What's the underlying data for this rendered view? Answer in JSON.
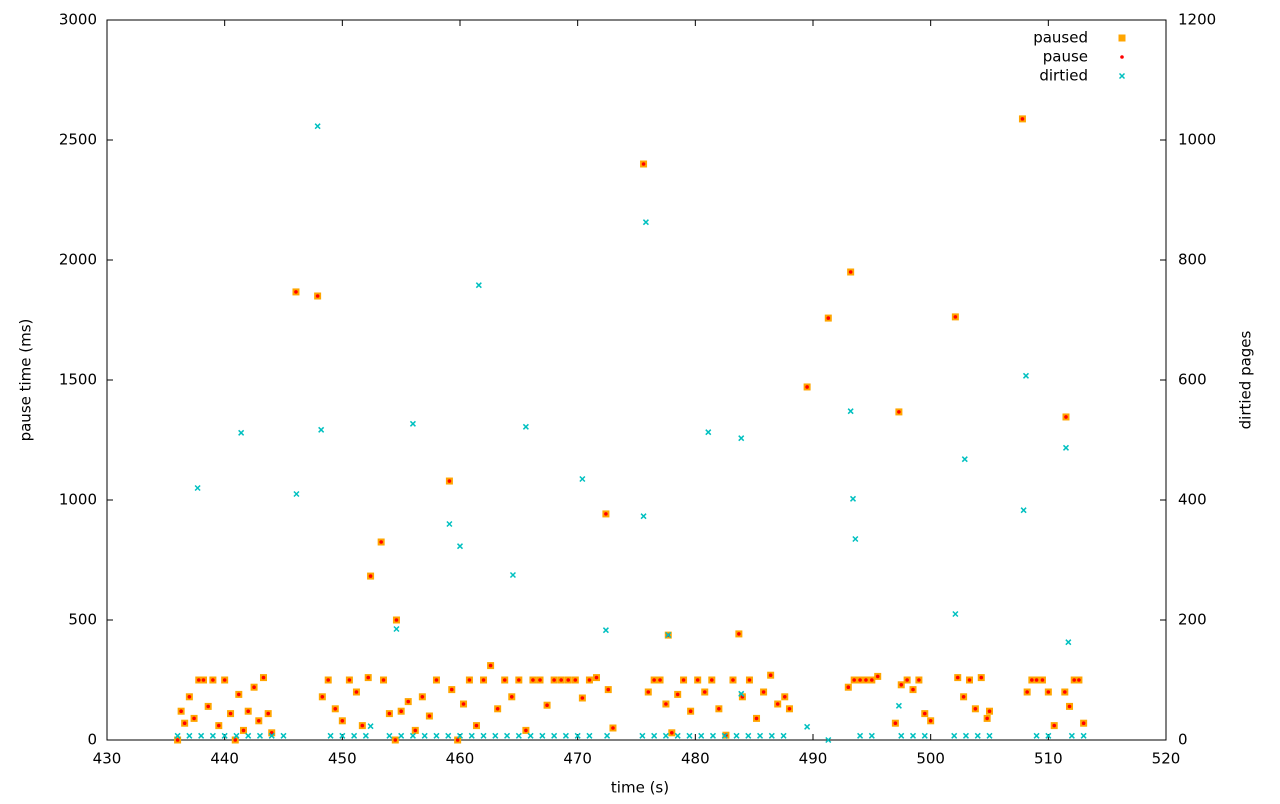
{
  "chart_data": {
    "type": "scatter",
    "xlabel": "time (s)",
    "ylabel": "pause time (ms)",
    "y2label": "dirtied pages",
    "xlim": [
      430,
      520
    ],
    "xticks": [
      430,
      440,
      450,
      460,
      470,
      480,
      490,
      500,
      510,
      520
    ],
    "ylim": [
      0,
      3000
    ],
    "yticks": [
      0,
      500,
      1000,
      1500,
      2000,
      2500,
      3000
    ],
    "y2lim": [
      0,
      1200
    ],
    "y2ticks": [
      0,
      200,
      400,
      600,
      800,
      1000,
      1200
    ],
    "legend": "top-right",
    "series": [
      {
        "name": "paused",
        "color": "#ffa500",
        "marker": "square",
        "x": [
          436.0,
          436.3,
          436.6,
          437.0,
          437.4,
          437.8,
          438.2,
          438.6,
          439.0,
          439.5,
          440.0,
          440.5,
          440.9,
          441.2,
          441.6,
          442.0,
          442.5,
          442.9,
          443.3,
          443.7,
          444.0,
          448.3,
          448.8,
          449.4,
          450.0,
          450.6,
          451.2,
          451.7,
          452.2,
          453.5,
          454.0,
          454.5,
          455.0,
          455.6,
          456.2,
          456.8,
          457.4,
          458.0,
          459.3,
          459.8,
          460.3,
          460.8,
          461.4,
          462.0,
          462.6,
          463.2,
          463.8,
          464.4,
          465.0,
          465.6,
          466.2,
          466.8,
          467.4,
          468.0,
          468.6,
          469.2,
          469.8,
          470.4,
          471.0,
          471.6,
          472.6,
          473.0,
          476.0,
          476.5,
          477.0,
          477.5,
          478.0,
          478.5,
          479.0,
          479.6,
          480.2,
          480.8,
          481.4,
          482.0,
          482.6,
          483.2,
          484.0,
          484.6,
          485.2,
          485.8,
          486.4,
          487.0,
          487.6,
          488.0,
          493.0,
          493.5,
          494.0,
          494.5,
          495.0,
          495.5,
          497.0,
          497.5,
          498.0,
          498.5,
          499.0,
          499.5,
          500.0,
          502.3,
          502.8,
          503.3,
          503.8,
          504.3,
          504.8,
          505.0,
          508.2,
          508.6,
          509.0,
          509.5,
          510.0,
          510.5,
          511.4,
          511.8,
          512.2,
          512.6,
          513.0,
          446.06,
          447.9,
          459.1,
          453.3,
          452.4,
          454.6,
          472.4,
          475.6,
          477.7,
          483.7,
          489.5,
          491.3,
          493.2,
          497.3,
          502.1,
          507.8,
          511.5
        ],
        "values": [
          0,
          120,
          70,
          180,
          90,
          250,
          250,
          140,
          250,
          60,
          250,
          110,
          0,
          190,
          40,
          120,
          220,
          80,
          260,
          110,
          30,
          180,
          250,
          130,
          80,
          250,
          200,
          60,
          260,
          250,
          110,
          0,
          120,
          160,
          40,
          180,
          100,
          250,
          210,
          0,
          150,
          250,
          60,
          250,
          310,
          130,
          250,
          180,
          250,
          40,
          250,
          250,
          145,
          250,
          250,
          250,
          250,
          175,
          250,
          260,
          210,
          50,
          200,
          250,
          250,
          150,
          30,
          190,
          250,
          120,
          250,
          200,
          250,
          130,
          20,
          250,
          180,
          250,
          90,
          200,
          270,
          150,
          180,
          130,
          220,
          250,
          250,
          250,
          250,
          265,
          70,
          230,
          250,
          210,
          250,
          110,
          80,
          260,
          180,
          250,
          130,
          260,
          90,
          120,
          200,
          250,
          250,
          250,
          200,
          60,
          200,
          140,
          250,
          250,
          70,
          1867,
          1850,
          1079,
          825,
          683,
          500,
          942,
          2400,
          437,
          442,
          1471,
          1758,
          1950,
          1367,
          1763,
          2588,
          1346
        ]
      },
      {
        "name": "pause",
        "color": "#ff0000",
        "marker": "dot",
        "x": [
          436.0,
          436.3,
          436.6,
          437.0,
          437.4,
          437.8,
          438.2,
          438.6,
          439.0,
          439.5,
          440.0,
          440.5,
          440.9,
          441.2,
          441.6,
          442.0,
          442.5,
          442.9,
          443.3,
          443.7,
          444.0,
          448.3,
          448.8,
          449.4,
          450.0,
          450.6,
          451.2,
          451.7,
          452.2,
          453.5,
          454.0,
          454.5,
          455.0,
          455.6,
          456.2,
          456.8,
          457.4,
          458.0,
          459.3,
          459.8,
          460.3,
          460.8,
          461.4,
          462.0,
          462.6,
          463.2,
          463.8,
          464.4,
          465.0,
          465.6,
          466.2,
          466.8,
          467.4,
          468.0,
          468.6,
          469.2,
          469.8,
          470.4,
          471.0,
          471.6,
          472.6,
          473.0,
          476.0,
          476.5,
          477.0,
          477.5,
          478.0,
          478.5,
          479.0,
          479.6,
          480.2,
          480.8,
          481.4,
          482.0,
          482.6,
          483.2,
          484.0,
          484.6,
          485.2,
          485.8,
          486.4,
          487.0,
          487.6,
          488.0,
          493.0,
          493.5,
          494.0,
          494.5,
          495.0,
          495.5,
          497.0,
          497.5,
          498.0,
          498.5,
          499.0,
          499.5,
          500.0,
          502.3,
          502.8,
          503.3,
          503.8,
          504.3,
          504.8,
          505.0,
          508.2,
          508.6,
          509.0,
          509.5,
          510.0,
          510.5,
          511.4,
          511.8,
          512.2,
          512.6,
          513.0,
          446.06,
          447.9,
          459.1,
          453.3,
          452.4,
          454.6,
          472.4,
          475.6,
          477.7,
          483.7,
          489.5,
          491.3,
          493.2,
          497.3,
          502.1,
          507.8,
          511.5
        ],
        "values": [
          0,
          120,
          70,
          180,
          90,
          250,
          250,
          140,
          250,
          60,
          250,
          110,
          0,
          190,
          40,
          120,
          220,
          80,
          260,
          110,
          30,
          180,
          250,
          130,
          80,
          250,
          200,
          60,
          260,
          250,
          110,
          0,
          120,
          160,
          40,
          180,
          100,
          250,
          210,
          0,
          150,
          250,
          60,
          250,
          310,
          130,
          250,
          180,
          250,
          40,
          250,
          250,
          145,
          250,
          250,
          250,
          250,
          175,
          250,
          260,
          210,
          50,
          200,
          250,
          250,
          150,
          30,
          190,
          250,
          120,
          250,
          200,
          250,
          130,
          20,
          250,
          180,
          250,
          90,
          200,
          270,
          150,
          180,
          130,
          220,
          250,
          250,
          250,
          250,
          265,
          70,
          230,
          250,
          210,
          250,
          110,
          80,
          260,
          180,
          250,
          130,
          260,
          90,
          120,
          200,
          250,
          250,
          250,
          200,
          60,
          200,
          140,
          250,
          250,
          70,
          1867,
          1850,
          1079,
          825,
          683,
          500,
          942,
          2400,
          437,
          442,
          1471,
          1758,
          1950,
          1367,
          1763,
          2588,
          1346
        ]
      },
      {
        "name": "dirtied",
        "color": "#00c0c0",
        "marker": "cross",
        "axis": "y2",
        "x": [
          436,
          437,
          438,
          439,
          440,
          441,
          442,
          443,
          444,
          445,
          449,
          450,
          451,
          452,
          454,
          455,
          456,
          457,
          458,
          459,
          460,
          461,
          462,
          463,
          464,
          465,
          466,
          467,
          468,
          469,
          470,
          471,
          472.5,
          475.5,
          476.5,
          477.5,
          478.5,
          479.5,
          480.5,
          481.5,
          482.5,
          483.5,
          484.5,
          485.5,
          486.5,
          487.5,
          494,
          495,
          497.5,
          498.5,
          499.5,
          502,
          503,
          504,
          505,
          509,
          510,
          512,
          513,
          437.7,
          441.4,
          446.1,
          447.9,
          448.2,
          456.0,
          454.6,
          459.1,
          460.0,
          461.6,
          464.5,
          465.6,
          470.4,
          472.4,
          475.6,
          475.8,
          477.7,
          481.1,
          483.9,
          483.9,
          489.5,
          491.3,
          493.2,
          493.4,
          493.6,
          497.3,
          502.1,
          502.9,
          507.9,
          508.1,
          511.5,
          511.7,
          452.4
        ],
        "values": [
          7,
          7,
          7,
          7,
          7,
          7,
          7,
          7,
          7,
          7,
          7,
          7,
          7,
          7,
          7,
          7,
          7,
          7,
          7,
          7,
          7,
          7,
          7,
          7,
          7,
          7,
          7,
          7,
          7,
          7,
          7,
          7,
          7,
          7,
          7,
          7,
          7,
          7,
          7,
          7,
          7,
          7,
          7,
          7,
          7,
          7,
          7,
          7,
          7,
          7,
          7,
          7,
          7,
          7,
          7,
          7,
          7,
          7,
          7,
          420,
          512,
          410,
          1023,
          517,
          527,
          185,
          360,
          323,
          758,
          275,
          522,
          435,
          183,
          373,
          863,
          175,
          513,
          503,
          77,
          22,
          0,
          548,
          402,
          335,
          57,
          210,
          468,
          383,
          607,
          487,
          163,
          23
        ]
      }
    ]
  }
}
